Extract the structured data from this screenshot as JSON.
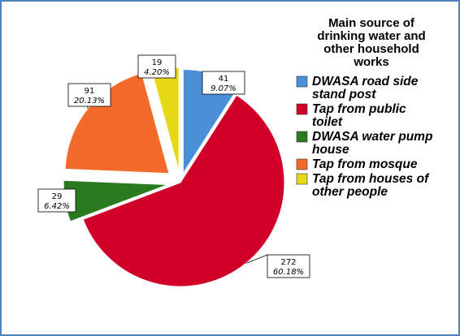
{
  "chart_data": {
    "type": "pie",
    "legend_title": "Main source of drinking water and other household works",
    "legend_title_lines": [
      "Main source of",
      "drinking water and",
      "other household",
      "works"
    ],
    "legend_position": "right",
    "exploded": true,
    "series": [
      {
        "name": "DWASA road side stand post",
        "legend_lines": [
          "DWASA road side",
          "stand post"
        ],
        "value": 41,
        "percent": "9.07%",
        "color": "#4a90d9"
      },
      {
        "name": "Tap from public toilet",
        "legend_lines": [
          "Tap from public",
          "toilet"
        ],
        "value": 272,
        "percent": "60.18%",
        "color": "#d1002a"
      },
      {
        "name": "DWASA water pump house",
        "legend_lines": [
          "DWASA water pump",
          "house"
        ],
        "value": 29,
        "percent": "6.42%",
        "color": "#2a7a1f"
      },
      {
        "name": "Tap from mosque",
        "legend_lines": [
          "Tap from mosque"
        ],
        "value": 91,
        "percent": "20.13%",
        "color": "#f26b2a"
      },
      {
        "name": "Tap from houses of other people",
        "legend_lines": [
          "Tap from houses of",
          "other people"
        ],
        "value": 19,
        "percent": "4.20%",
        "color": "#e6d814"
      }
    ]
  }
}
